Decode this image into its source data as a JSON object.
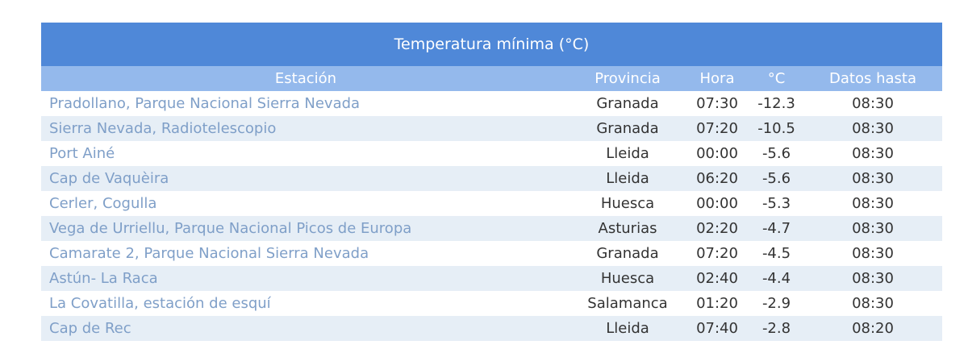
{
  "title": "Temperatura mínima (°C)",
  "columns": [
    "Estación",
    "Provincia",
    "Hora",
    "°C",
    "Datos hasta"
  ],
  "rows": [
    {
      "station": "Pradollano, Parque Nacional Sierra Nevada",
      "province": "Granada",
      "time": "07:30",
      "temp": "-12.3",
      "until": "08:30"
    },
    {
      "station": "Sierra Nevada, Radiotelescopio",
      "province": "Granada",
      "time": "07:20",
      "temp": "-10.5",
      "until": "08:30"
    },
    {
      "station": "Port Ainé",
      "province": "Lleida",
      "time": "00:00",
      "temp": "-5.6",
      "until": "08:30"
    },
    {
      "station": "Cap de Vaquèira",
      "province": "Lleida",
      "time": "06:20",
      "temp": "-5.6",
      "until": "08:30"
    },
    {
      "station": "Cerler, Cogulla",
      "province": "Huesca",
      "time": "00:00",
      "temp": "-5.3",
      "until": "08:30"
    },
    {
      "station": "Vega de Urriellu, Parque Nacional Picos de Europa",
      "province": "Asturias",
      "time": "02:20",
      "temp": "-4.7",
      "until": "08:30"
    },
    {
      "station": "Camarate 2, Parque Nacional Sierra Nevada",
      "province": "Granada",
      "time": "07:20",
      "temp": "-4.5",
      "until": "08:30"
    },
    {
      "station": "Astún- La Raca",
      "province": "Huesca",
      "time": "02:40",
      "temp": "-4.4",
      "until": "08:30"
    },
    {
      "station": "La Covatilla, estación de esquí",
      "province": "Salamanca",
      "time": "01:20",
      "temp": "-2.9",
      "until": "08:30"
    },
    {
      "station": "Cap de Rec",
      "province": "Lleida",
      "time": "07:40",
      "temp": "-2.8",
      "until": "08:20"
    }
  ]
}
